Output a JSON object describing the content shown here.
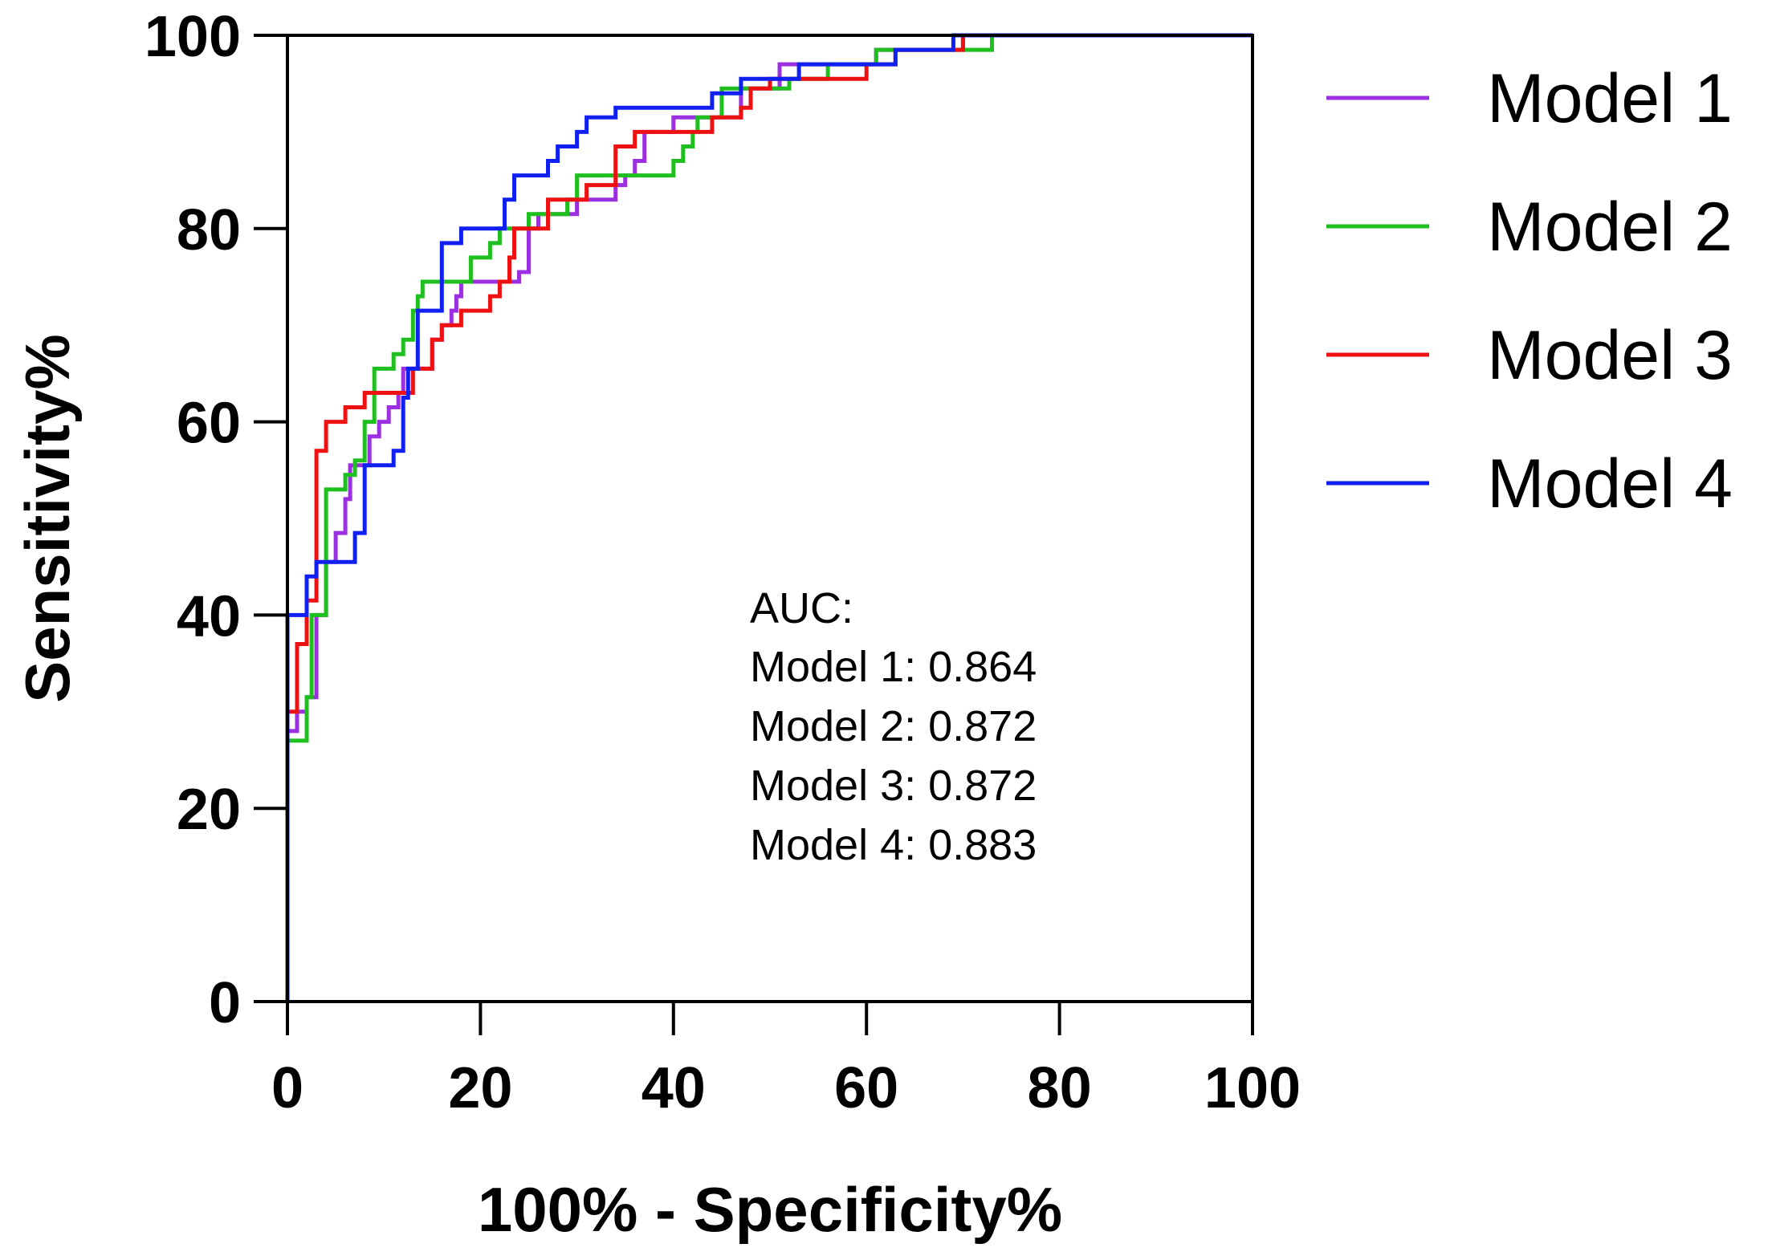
{
  "chart_data": {
    "type": "line",
    "subtype": "step",
    "title": "",
    "xlabel": "100% - Specificity%",
    "ylabel": "Sensitivity%",
    "xlim": [
      0,
      100
    ],
    "ylim": [
      0,
      100
    ],
    "xticks": [
      0,
      20,
      40,
      60,
      80,
      100
    ],
    "yticks": [
      0,
      20,
      40,
      60,
      80,
      100
    ],
    "grid": false,
    "legend_position": "right",
    "series": [
      {
        "name": "Model 1",
        "color": "#9b30e0",
        "points": [
          [
            0,
            0
          ],
          [
            0,
            28
          ],
          [
            1,
            28
          ],
          [
            1,
            30
          ],
          [
            2,
            30
          ],
          [
            2,
            31.5
          ],
          [
            3,
            31.5
          ],
          [
            3,
            40
          ],
          [
            4,
            40
          ],
          [
            4,
            45.5
          ],
          [
            5,
            45.5
          ],
          [
            5,
            48.5
          ],
          [
            6,
            48.5
          ],
          [
            6,
            52
          ],
          [
            6.5,
            52
          ],
          [
            6.5,
            55.5
          ],
          [
            8.5,
            55.5
          ],
          [
            8.5,
            58.5
          ],
          [
            9.5,
            58.5
          ],
          [
            9.5,
            60
          ],
          [
            10.5,
            60
          ],
          [
            10.5,
            61.5
          ],
          [
            11.5,
            61.5
          ],
          [
            11.5,
            63
          ],
          [
            12,
            63
          ],
          [
            12,
            65.5
          ],
          [
            15,
            65.5
          ],
          [
            15,
            68.5
          ],
          [
            16,
            68.5
          ],
          [
            16,
            70
          ],
          [
            17,
            70
          ],
          [
            17,
            71.5
          ],
          [
            17.5,
            71.5
          ],
          [
            17.5,
            73
          ],
          [
            18,
            73
          ],
          [
            18,
            74.5
          ],
          [
            24,
            74.5
          ],
          [
            24,
            75.5
          ],
          [
            25,
            75.5
          ],
          [
            25,
            80
          ],
          [
            26,
            80
          ],
          [
            26,
            81.5
          ],
          [
            30,
            81.5
          ],
          [
            30,
            83
          ],
          [
            34,
            83
          ],
          [
            34,
            84.5
          ],
          [
            35,
            84.5
          ],
          [
            35,
            85.5
          ],
          [
            36,
            85.5
          ],
          [
            36,
            87
          ],
          [
            37,
            87
          ],
          [
            37,
            90
          ],
          [
            40,
            90
          ],
          [
            40,
            91.5
          ],
          [
            47,
            91.5
          ],
          [
            47,
            94.5
          ],
          [
            51,
            94.5
          ],
          [
            51,
            97
          ],
          [
            61,
            97
          ],
          [
            61,
            98.5
          ],
          [
            70,
            98.5
          ],
          [
            70,
            100
          ],
          [
            100,
            100
          ]
        ]
      },
      {
        "name": "Model 2",
        "color": "#1fbf1f",
        "points": [
          [
            0,
            0
          ],
          [
            0,
            27
          ],
          [
            2,
            27
          ],
          [
            2,
            31.5
          ],
          [
            2.5,
            31.5
          ],
          [
            2.5,
            40
          ],
          [
            4,
            40
          ],
          [
            4,
            53
          ],
          [
            6,
            53
          ],
          [
            6,
            54.5
          ],
          [
            7,
            54.5
          ],
          [
            7,
            56
          ],
          [
            8,
            56
          ],
          [
            8,
            60
          ],
          [
            9,
            60
          ],
          [
            9,
            65.5
          ],
          [
            11,
            65.5
          ],
          [
            11,
            67
          ],
          [
            12,
            67
          ],
          [
            12,
            68.5
          ],
          [
            13,
            68.5
          ],
          [
            13,
            71.5
          ],
          [
            13.5,
            71.5
          ],
          [
            13.5,
            73
          ],
          [
            14,
            73
          ],
          [
            14,
            74.5
          ],
          [
            19,
            74.5
          ],
          [
            19,
            77
          ],
          [
            21,
            77
          ],
          [
            21,
            78.5
          ],
          [
            22,
            78.5
          ],
          [
            22,
            80
          ],
          [
            25,
            80
          ],
          [
            25,
            81.5
          ],
          [
            29,
            81.5
          ],
          [
            29,
            83
          ],
          [
            30,
            83
          ],
          [
            30,
            85.5
          ],
          [
            40,
            85.5
          ],
          [
            40,
            87
          ],
          [
            41,
            87
          ],
          [
            41,
            88.5
          ],
          [
            42,
            88.5
          ],
          [
            42,
            90
          ],
          [
            42.5,
            90
          ],
          [
            42.5,
            91.5
          ],
          [
            45,
            91.5
          ],
          [
            45,
            94.5
          ],
          [
            52,
            94.5
          ],
          [
            52,
            95.5
          ],
          [
            56,
            95.5
          ],
          [
            56,
            97
          ],
          [
            61,
            97
          ],
          [
            61,
            98.5
          ],
          [
            73,
            98.5
          ],
          [
            73,
            100
          ],
          [
            100,
            100
          ]
        ]
      },
      {
        "name": "Model 3",
        "color": "#ee1111",
        "points": [
          [
            0,
            0
          ],
          [
            0,
            30
          ],
          [
            1,
            30
          ],
          [
            1,
            37
          ],
          [
            2,
            37
          ],
          [
            2,
            41.5
          ],
          [
            3,
            41.5
          ],
          [
            3,
            57
          ],
          [
            4,
            57
          ],
          [
            4,
            60
          ],
          [
            6,
            60
          ],
          [
            6,
            61.5
          ],
          [
            8,
            61.5
          ],
          [
            8,
            63
          ],
          [
            13,
            63
          ],
          [
            13,
            65.5
          ],
          [
            15,
            65.5
          ],
          [
            15,
            68.5
          ],
          [
            16,
            68.5
          ],
          [
            16,
            70
          ],
          [
            18,
            70
          ],
          [
            18,
            71.5
          ],
          [
            21,
            71.5
          ],
          [
            21,
            73
          ],
          [
            22,
            73
          ],
          [
            22,
            74.5
          ],
          [
            23,
            74.5
          ],
          [
            23,
            77
          ],
          [
            23.5,
            77
          ],
          [
            23.5,
            80
          ],
          [
            27,
            80
          ],
          [
            27,
            83
          ],
          [
            31,
            83
          ],
          [
            31,
            84.5
          ],
          [
            34,
            84.5
          ],
          [
            34,
            88.5
          ],
          [
            36,
            88.5
          ],
          [
            36,
            90
          ],
          [
            44,
            90
          ],
          [
            44,
            91.5
          ],
          [
            47,
            91.5
          ],
          [
            47,
            92.5
          ],
          [
            48,
            92.5
          ],
          [
            48,
            94.5
          ],
          [
            50,
            94.5
          ],
          [
            50,
            95.5
          ],
          [
            60,
            95.5
          ],
          [
            60,
            97
          ],
          [
            63,
            97
          ],
          [
            63,
            98.5
          ],
          [
            70,
            98.5
          ],
          [
            70,
            100
          ],
          [
            100,
            100
          ]
        ]
      },
      {
        "name": "Model 4",
        "color": "#1020f0",
        "points": [
          [
            0,
            0
          ],
          [
            0,
            40
          ],
          [
            2,
            40
          ],
          [
            2,
            44
          ],
          [
            3,
            44
          ],
          [
            3,
            45.5
          ],
          [
            7,
            45.5
          ],
          [
            7,
            48.5
          ],
          [
            8,
            48.5
          ],
          [
            8,
            55.5
          ],
          [
            11,
            55.5
          ],
          [
            11,
            57
          ],
          [
            12,
            57
          ],
          [
            12,
            62.5
          ],
          [
            12.5,
            62.5
          ],
          [
            12.5,
            65.5
          ],
          [
            13.5,
            65.5
          ],
          [
            13.5,
            71.5
          ],
          [
            16,
            71.5
          ],
          [
            16,
            78.5
          ],
          [
            18,
            78.5
          ],
          [
            18,
            80
          ],
          [
            22.5,
            80
          ],
          [
            22.5,
            83
          ],
          [
            23.5,
            83
          ],
          [
            23.5,
            85.5
          ],
          [
            27,
            85.5
          ],
          [
            27,
            87
          ],
          [
            28,
            87
          ],
          [
            28,
            88.5
          ],
          [
            30,
            88.5
          ],
          [
            30,
            90
          ],
          [
            31,
            90
          ],
          [
            31,
            91.5
          ],
          [
            34,
            91.5
          ],
          [
            34,
            92.5
          ],
          [
            44,
            92.5
          ],
          [
            44,
            94
          ],
          [
            47,
            94
          ],
          [
            47,
            95.5
          ],
          [
            53,
            95.5
          ],
          [
            53,
            97
          ],
          [
            63,
            97
          ],
          [
            63,
            98.5
          ],
          [
            69,
            98.5
          ],
          [
            69,
            100
          ],
          [
            100,
            100
          ]
        ]
      }
    ],
    "annotation": {
      "title": "AUC:",
      "lines": [
        "Model 1: 0.864",
        "Model 2: 0.872",
        "Model 3: 0.872",
        "Model 4: 0.883"
      ]
    }
  }
}
